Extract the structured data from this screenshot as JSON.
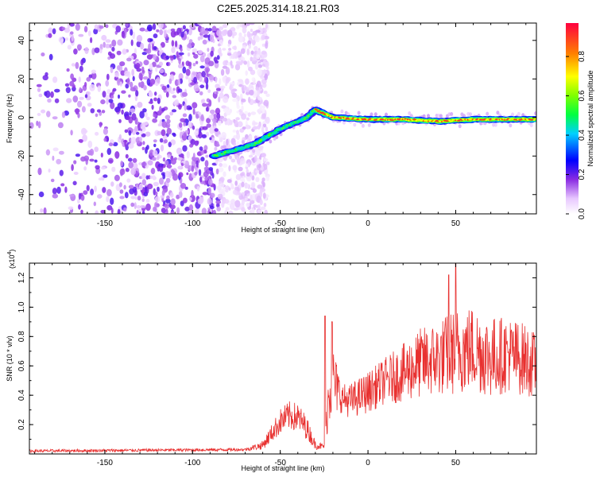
{
  "title": "C2E5.2025.314.18.21.R03",
  "chart_data": [
    {
      "type": "heatmap",
      "name": "spectrogram",
      "xlabel": "Height of straight line (km)",
      "ylabel": "Frequency (Hz)",
      "xlim": [
        -193,
        96
      ],
      "ylim": [
        -50,
        49
      ],
      "x_ticks": [
        -150,
        -100,
        -50,
        0,
        50
      ],
      "y_ticks": [
        -40,
        -20,
        0,
        20,
        40
      ],
      "colorbar": {
        "label": "Normalized spectral amplitude",
        "range": [
          0,
          0.97
        ],
        "ticks": [
          0.0,
          0.2,
          0.4,
          0.6,
          0.8
        ]
      },
      "features": {
        "noise_region_x": [
          -193,
          -65
        ],
        "noise_amplitude": 0.15,
        "chirp_track": {
          "x": [
            -88,
            -65,
            -50,
            -35,
            -30,
            -25,
            -20,
            0,
            20,
            40,
            60,
            96
          ],
          "y": [
            -20,
            -14,
            -6,
            0,
            4,
            2,
            0,
            -1,
            -1,
            -2,
            -1,
            -1
          ]
        },
        "signal_amplitude_peak": 0.97
      }
    },
    {
      "type": "line",
      "name": "snr",
      "xlabel": "Height of straight line (km)",
      "ylabel": "SNR (10 * v/v)",
      "scale_label": "(x10",
      "scale_exp": "4",
      "scale_close": ")",
      "xlim": [
        -193,
        96
      ],
      "ylim": [
        0,
        1.3
      ],
      "x_ticks": [
        -150,
        -100,
        -50,
        0,
        50
      ],
      "y_ticks": [
        0.2,
        0.4,
        0.6,
        0.8,
        1.0,
        1.2
      ],
      "y_tick_labels": [
        "0.2",
        "0.4",
        "0.6",
        "0.8",
        "1.0",
        "1.2"
      ],
      "color": "#e8302f",
      "envelope": {
        "x": [
          -193,
          -70,
          -60,
          -55,
          -50,
          -45,
          -40,
          -35,
          -30,
          -25,
          -22,
          -20,
          -15,
          -10,
          0,
          10,
          20,
          30,
          40,
          50,
          60,
          70,
          80,
          90,
          96
        ],
        "mean": [
          0.02,
          0.03,
          0.06,
          0.14,
          0.22,
          0.26,
          0.25,
          0.18,
          0.06,
          0.05,
          0.45,
          0.5,
          0.38,
          0.36,
          0.42,
          0.5,
          0.55,
          0.62,
          0.65,
          0.7,
          0.72,
          0.66,
          0.68,
          0.64,
          0.6
        ],
        "spread": [
          0.01,
          0.01,
          0.03,
          0.06,
          0.09,
          0.1,
          0.1,
          0.08,
          0.03,
          0.02,
          0.25,
          0.25,
          0.1,
          0.12,
          0.14,
          0.16,
          0.2,
          0.24,
          0.26,
          0.3,
          0.3,
          0.28,
          0.26,
          0.25,
          0.22
        ]
      },
      "spikes": [
        {
          "x": -24.5,
          "y": 0.94
        },
        {
          "x": -20.5,
          "y": 0.9
        },
        {
          "x": 50,
          "y": 1.3
        },
        {
          "x": 46,
          "y": 1.22
        }
      ]
    }
  ]
}
